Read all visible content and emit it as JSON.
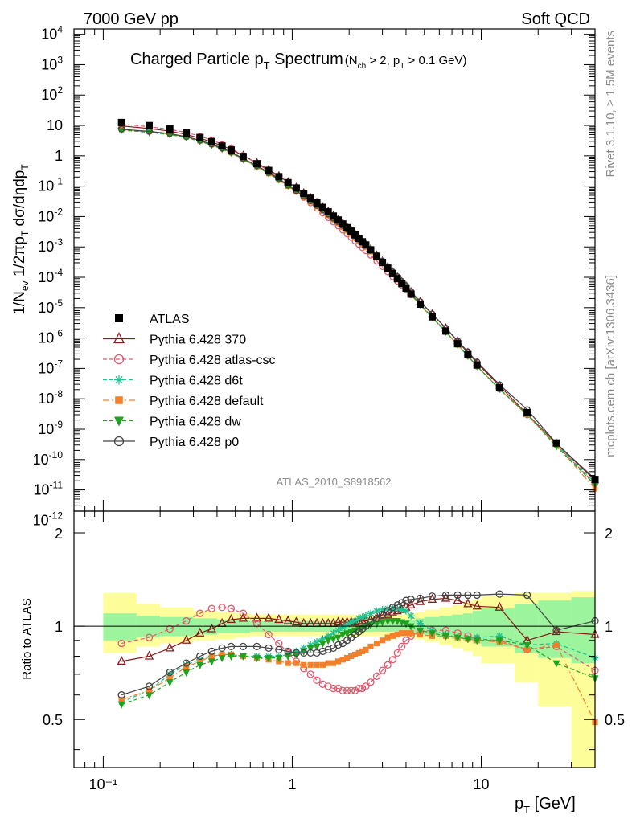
{
  "header": {
    "left": "7000 GeV pp",
    "right": "Soft QCD"
  },
  "side_labels": {
    "rivet": "Rivet 3.1.10, ≥ 1.5M events",
    "mcplots": "mcplots.cern.ch [arXiv:1306.3436]"
  },
  "chart_data": {
    "type": "line",
    "title": "Charged Particle p_T Spectrum",
    "title_cut": "(N_ch > 2, p_T > 0.1 GeV)",
    "analysis_tag": "ATLAS_2010_S8918562",
    "xlabel": "p_T [GeV]",
    "ylabel": "1/N_ev 1/2πp_T dσ/dηdp_T",
    "ratio_ylabel": "Ratio to ATLAS",
    "x_scale": "log",
    "y_scale": "log",
    "xlim": [
      0.07,
      40
    ],
    "ylim": [
      2e-12,
      15000
    ],
    "ratio_ylim": [
      0.35,
      2.35
    ],
    "legend_position": "lower-left",
    "x_tick_labels": [
      "10⁻¹",
      "1",
      "10"
    ],
    "ratio_tick_labels": [
      "0.5",
      "1",
      "2"
    ],
    "x": [
      0.125,
      0.175,
      0.225,
      0.275,
      0.325,
      0.375,
      0.425,
      0.475,
      0.55,
      0.65,
      0.75,
      0.85,
      0.95,
      1.05,
      1.15,
      1.25,
      1.35,
      1.45,
      1.55,
      1.65,
      1.75,
      1.85,
      1.95,
      2.05,
      2.15,
      2.25,
      2.35,
      2.45,
      2.6,
      2.8,
      3.0,
      3.2,
      3.4,
      3.6,
      3.8,
      4.0,
      4.25,
      4.75,
      5.5,
      6.5,
      7.5,
      8.5,
      9.5,
      12.5,
      17.5,
      25,
      40
    ],
    "atlas": {
      "name": "ATLAS",
      "values": [
        12.5,
        9.9,
        7.6,
        5.6,
        4.0,
        2.9,
        2.1,
        1.55,
        0.95,
        0.55,
        0.33,
        0.205,
        0.13,
        0.087,
        0.058,
        0.04,
        0.028,
        0.02,
        0.0143,
        0.0104,
        0.0077,
        0.0057,
        0.0043,
        0.0033,
        0.0025,
        0.0019,
        0.00148,
        0.00116,
        0.0008,
        0.00049,
        0.00031,
        0.0002,
        0.000132,
        9e-05,
        6.2e-05,
        4.4e-05,
        2.8e-05,
        1.3e-05,
        5e-06,
        1.7e-06,
        6.5e-07,
        2.8e-07,
        1.3e-07,
        2.3e-08,
        3.5e-09,
        3.5e-10,
        2.2e-11
      ]
    },
    "ratio_bands": {
      "x_edges": [
        0.1,
        0.15,
        0.2,
        0.3,
        0.4,
        0.5,
        0.6,
        0.7,
        0.8,
        0.9,
        1.0,
        1.5,
        2.0,
        2.5,
        3.0,
        3.5,
        4.0,
        4.5,
        5.0,
        6.0,
        7.0,
        8.0,
        9.0,
        10.0,
        15.0,
        20.0,
        30.0,
        50.0
      ],
      "inner_lo": [
        0.9,
        0.92,
        0.93,
        0.94,
        0.95,
        0.95,
        0.96,
        0.96,
        0.96,
        0.96,
        0.96,
        0.96,
        0.96,
        0.96,
        0.96,
        0.96,
        0.95,
        0.94,
        0.93,
        0.92,
        0.91,
        0.9,
        0.88,
        0.86,
        0.82,
        0.79,
        0.76
      ],
      "inner_hi": [
        1.1,
        1.08,
        1.07,
        1.06,
        1.05,
        1.05,
        1.04,
        1.04,
        1.04,
        1.04,
        1.04,
        1.04,
        1.04,
        1.04,
        1.04,
        1.04,
        1.05,
        1.06,
        1.07,
        1.08,
        1.09,
        1.1,
        1.12,
        1.14,
        1.18,
        1.21,
        1.24
      ],
      "outer_lo": [
        0.82,
        0.86,
        0.88,
        0.9,
        0.91,
        0.92,
        0.93,
        0.93,
        0.93,
        0.93,
        0.93,
        0.93,
        0.93,
        0.93,
        0.93,
        0.93,
        0.92,
        0.91,
        0.89,
        0.87,
        0.85,
        0.83,
        0.8,
        0.76,
        0.66,
        0.55,
        0.35
      ],
      "outer_hi": [
        1.28,
        1.18,
        1.15,
        1.12,
        1.11,
        1.1,
        1.09,
        1.09,
        1.09,
        1.09,
        1.09,
        1.09,
        1.09,
        1.09,
        1.09,
        1.09,
        1.1,
        1.11,
        1.13,
        1.15,
        1.17,
        1.2,
        1.22,
        1.25,
        1.28,
        1.28,
        1.3
      ]
    },
    "series": [
      {
        "name": "Pythia 6.428 370",
        "color": "#8b1a1a",
        "dash": "",
        "marker": "triangle-open",
        "ratio": [
          0.77,
          0.8,
          0.85,
          0.9,
          0.95,
          0.98,
          1.02,
          1.05,
          1.06,
          1.06,
          1.06,
          1.05,
          1.04,
          1.03,
          1.02,
          1.02,
          1.02,
          1.02,
          1.02,
          1.02,
          1.03,
          1.03,
          1.03,
          1.03,
          1.03,
          1.04,
          1.04,
          1.04,
          1.05,
          1.07,
          1.08,
          1.09,
          1.11,
          1.12,
          1.13,
          1.15,
          1.17,
          1.2,
          1.22,
          1.23,
          1.21,
          1.18,
          1.16,
          1.15,
          0.9,
          0.96,
          0.94
        ]
      },
      {
        "name": "Pythia 6.428 atlas-csc",
        "color": "#e05a6e",
        "dash": "5,3",
        "marker": "circle-open",
        "ratio": [
          0.88,
          0.92,
          0.98,
          1.04,
          1.1,
          1.14,
          1.15,
          1.14,
          1.1,
          1.02,
          0.94,
          0.88,
          0.82,
          0.77,
          0.73,
          0.7,
          0.67,
          0.65,
          0.64,
          0.63,
          0.63,
          0.62,
          0.62,
          0.62,
          0.62,
          0.63,
          0.63,
          0.64,
          0.66,
          0.69,
          0.72,
          0.75,
          0.78,
          0.82,
          0.86,
          0.9,
          0.93,
          0.96,
          0.97,
          0.97,
          0.95,
          0.93,
          0.91,
          0.9,
          0.84,
          0.86,
          0.72
        ]
      },
      {
        "name": "Pythia 6.428 d6t",
        "color": "#20c090",
        "dash": "5,3",
        "marker": "star",
        "ratio": [
          0.57,
          0.62,
          0.7,
          0.75,
          0.78,
          0.8,
          0.81,
          0.81,
          0.8,
          0.8,
          0.8,
          0.8,
          0.81,
          0.83,
          0.85,
          0.87,
          0.89,
          0.91,
          0.93,
          0.95,
          0.97,
          0.99,
          1.01,
          1.03,
          1.04,
          1.06,
          1.07,
          1.08,
          1.1,
          1.12,
          1.13,
          1.14,
          1.14,
          1.14,
          1.13,
          1.12,
          1.08,
          1.02,
          0.97,
          0.94,
          0.92,
          0.91,
          0.92,
          0.93,
          0.87,
          0.88,
          0.79
        ]
      },
      {
        "name": "Pythia 6.428 default",
        "color": "#f5802a",
        "dash": "8,3,2,3",
        "marker": "square",
        "ratio": [
          0.58,
          0.62,
          0.68,
          0.74,
          0.77,
          0.8,
          0.81,
          0.81,
          0.8,
          0.79,
          0.78,
          0.77,
          0.76,
          0.76,
          0.75,
          0.75,
          0.75,
          0.75,
          0.76,
          0.76,
          0.77,
          0.78,
          0.79,
          0.8,
          0.81,
          0.82,
          0.83,
          0.84,
          0.86,
          0.88,
          0.9,
          0.92,
          0.93,
          0.94,
          0.95,
          0.95,
          0.95,
          0.94,
          0.93,
          0.93,
          0.92,
          0.91,
          0.9,
          0.89,
          0.84,
          0.87,
          0.49
        ]
      },
      {
        "name": "Pythia 6.428 dw",
        "color": "#1fa31f",
        "dash": "5,3",
        "marker": "triangle-down",
        "ratio": [
          0.56,
          0.6,
          0.66,
          0.71,
          0.75,
          0.77,
          0.79,
          0.8,
          0.8,
          0.79,
          0.79,
          0.79,
          0.8,
          0.81,
          0.83,
          0.85,
          0.86,
          0.88,
          0.9,
          0.91,
          0.92,
          0.94,
          0.95,
          0.96,
          0.97,
          0.98,
          0.99,
          1.0,
          1.01,
          1.02,
          1.03,
          1.04,
          1.04,
          1.04,
          1.03,
          1.02,
          1.0,
          0.97,
          0.95,
          0.93,
          0.92,
          0.91,
          0.9,
          0.9,
          0.87,
          0.76,
          0.68
        ]
      },
      {
        "name": "Pythia 6.428 p0",
        "color": "#444444",
        "dash": "",
        "marker": "circle-open",
        "ratio": [
          0.6,
          0.64,
          0.71,
          0.76,
          0.8,
          0.83,
          0.85,
          0.86,
          0.86,
          0.86,
          0.85,
          0.84,
          0.83,
          0.82,
          0.82,
          0.82,
          0.82,
          0.83,
          0.84,
          0.85,
          0.87,
          0.88,
          0.9,
          0.92,
          0.94,
          0.96,
          0.98,
          1.0,
          1.03,
          1.06,
          1.09,
          1.12,
          1.15,
          1.17,
          1.19,
          1.21,
          1.22,
          1.23,
          1.25,
          1.26,
          1.26,
          1.26,
          1.26,
          1.27,
          1.26,
          0.97,
          1.04
        ]
      }
    ]
  }
}
